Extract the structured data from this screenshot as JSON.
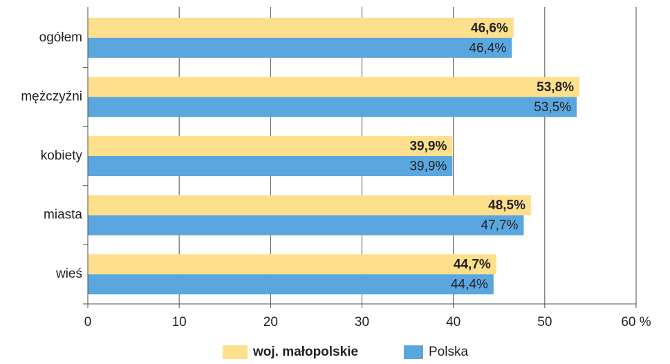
{
  "chart_data": {
    "type": "bar",
    "orientation": "horizontal",
    "categories": [
      "ogółem",
      "mężczyźni",
      "kobiety",
      "miasta",
      "wieś"
    ],
    "series": [
      {
        "name": "woj. małopolskie",
        "color": "#fedf8c",
        "values": [
          46.6,
          53.8,
          39.9,
          48.5,
          44.7
        ],
        "value_labels": [
          "46,6%",
          "53,8%",
          "39,9%",
          "48,5%",
          "44,7%"
        ]
      },
      {
        "name": "Polska",
        "color": "#5aa7e0",
        "values": [
          46.4,
          53.5,
          39.9,
          47.7,
          44.4
        ],
        "value_labels": [
          "46,4%",
          "53,5%",
          "39,9%",
          "47,7%",
          "44,4%"
        ]
      }
    ],
    "xlim": [
      0,
      60
    ],
    "xticks": [
      0,
      10,
      20,
      30,
      40,
      50,
      {
        "value": 60,
        "label": "60 %"
      }
    ],
    "grid": true,
    "legend": "bottom"
  }
}
